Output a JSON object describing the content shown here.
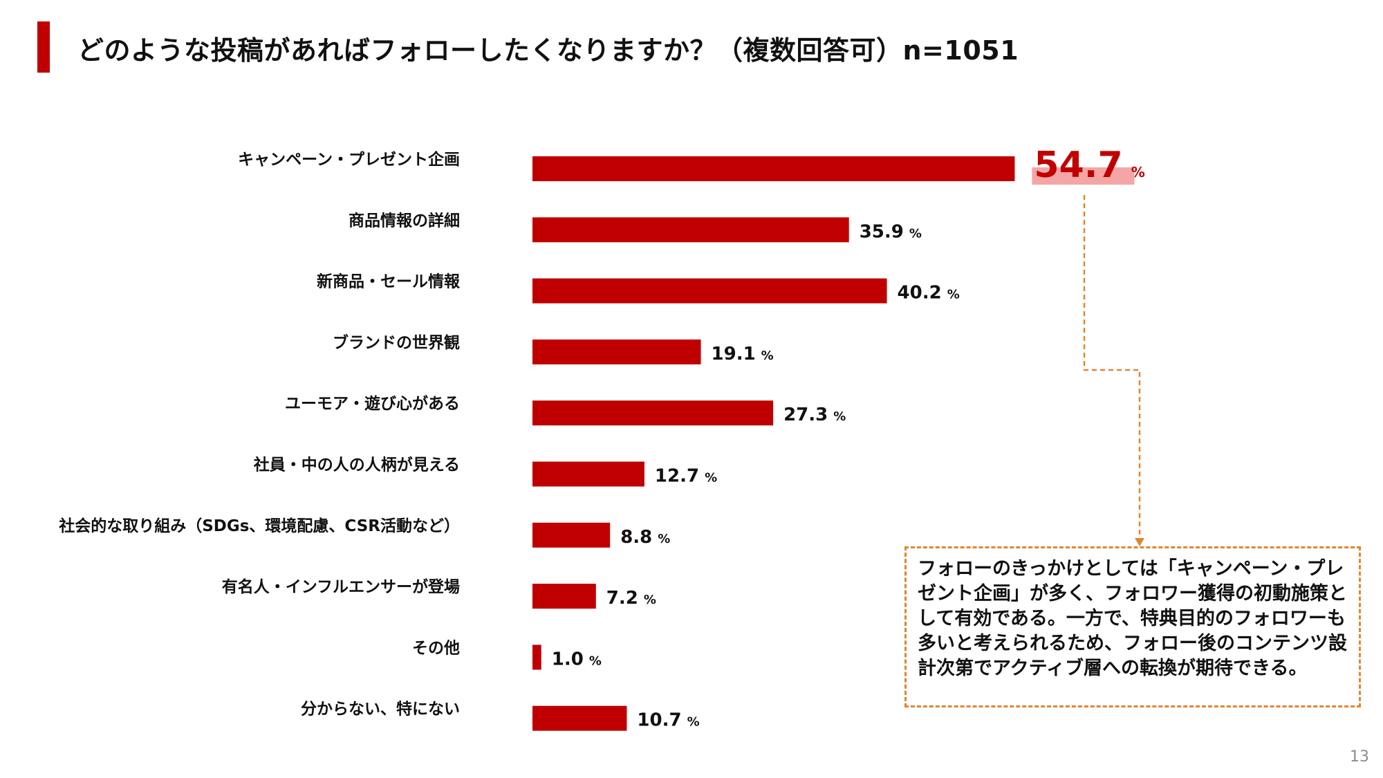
{
  "title": "どのような投稿があればフォローしたくなりますか？（複数回答可）n=1051",
  "colors": {
    "accent": "#c00000",
    "bar": "#c00000",
    "highlight_fill": "#f4a6a6",
    "connector": "#e0852f",
    "text": "#111111"
  },
  "chart_data": {
    "type": "bar",
    "orientation": "horizontal",
    "unit": "%",
    "xlim": [
      0,
      60
    ],
    "categories": [
      "キャンペーン・プレゼント企画",
      "商品情報の詳細",
      "新商品・セール情報",
      "ブランドの世界観",
      "ユーモア・遊び心がある",
      "社員・中の人の人柄が見える",
      "社会的な取り組み（SDGs、環境配慮、CSR活動など）",
      "有名人・インフルエンサーが登場",
      "その他",
      "分からない、特にない"
    ],
    "values": [
      54.7,
      35.9,
      40.2,
      19.1,
      27.3,
      12.7,
      8.8,
      7.2,
      1.0,
      10.7
    ],
    "labels": [
      "54.7",
      "35.9",
      "40.2",
      "19.1",
      "27.3",
      "12.7",
      "8.8",
      "7.2",
      "1.0",
      "10.7"
    ],
    "highlight_index": 0
  },
  "callout": {
    "text": "フォローのきっかけとしては「キャンペーン・プレゼント企画」が多く、フォロワー獲得の初動施策として有効である。一方で、特典目的のフォロワーも多いと考えられるため、フォロー後のコンテンツ設計次第でアクティブ層への転換が期待できる。"
  },
  "page_number": "13"
}
